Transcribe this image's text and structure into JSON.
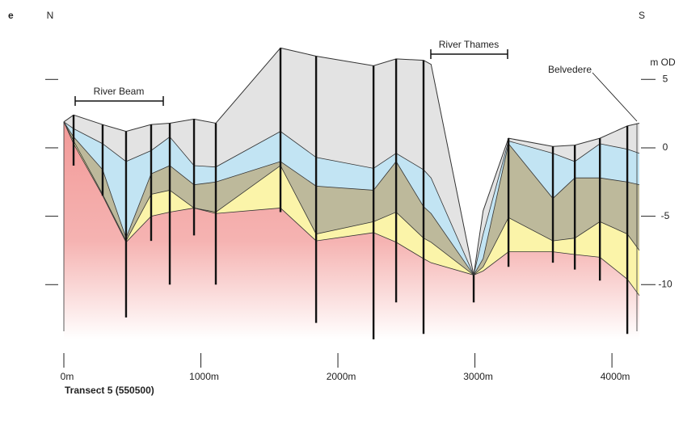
{
  "panel_label": "e",
  "north": "N",
  "south": "S",
  "annotations": {
    "river_beam": "River Beam",
    "river_thames": "River Thames",
    "belvedere": "Belvedere"
  },
  "chart_data": {
    "type": "cross-section",
    "title": "Transect 5 (550500)",
    "y_label": "m OD",
    "xlim": [
      0,
      4200
    ],
    "ylim": [
      -14,
      8
    ],
    "xticks": [
      {
        "value": 0,
        "label": "0m"
      },
      {
        "value": 1000,
        "label": "1000m"
      },
      {
        "value": 2000,
        "label": "2000m"
      },
      {
        "value": 3000,
        "label": "3000m"
      },
      {
        "value": 4000,
        "label": "4000m"
      }
    ],
    "yticks": [
      5,
      0,
      -5,
      -10
    ],
    "x": [
      0,
      71,
      283,
      454,
      637,
      773,
      950,
      1109,
      1581,
      1841,
      2260,
      2425,
      2625,
      2680,
      2991,
      3060,
      3245,
      3569,
      3729,
      3912,
      4112,
      4200
    ],
    "series": [
      {
        "color": "#e3e3e3",
        "values": [
          1.9,
          2.4,
          1.7,
          1.2,
          1.7,
          1.8,
          2.1,
          1.8,
          7.3,
          6.7,
          6.0,
          6.5,
          6.4,
          6.1,
          -9.3,
          -4.6,
          0.7,
          0.1,
          0.2,
          0.7,
          1.6,
          1.8
        ]
      },
      {
        "color": "#c2e4f3",
        "values": [
          1.9,
          1.4,
          0.3,
          -1.0,
          -0.2,
          0.8,
          -1.3,
          -1.4,
          1.2,
          -0.7,
          -1.5,
          -0.4,
          -1.6,
          -2.2,
          -9.3,
          -6.3,
          0.5,
          -0.4,
          -1.0,
          0.3,
          -0.1,
          -0.4
        ]
      },
      {
        "color": "#bdb99b",
        "values": [
          1.9,
          0.8,
          -1.6,
          -6.6,
          -1.9,
          -1.3,
          -2.7,
          -2.5,
          -1.0,
          -2.8,
          -3.1,
          -1.0,
          -4.3,
          -4.8,
          -9.3,
          -8.1,
          0.3,
          -3.7,
          -2.2,
          -2.2,
          -2.5,
          -2.7
        ]
      },
      {
        "color": "#fbf4a9",
        "values": [
          1.9,
          0.5,
          -3.4,
          -6.8,
          -3.4,
          -3.1,
          -4.4,
          -4.7,
          -1.3,
          -6.3,
          -5.4,
          -4.7,
          -6.6,
          -6.9,
          -9.3,
          -8.7,
          -5.1,
          -6.8,
          -6.6,
          -5.4,
          -6.3,
          -7.5
        ]
      },
      {
        "color": "#f29a98",
        "values": [
          1.9,
          0.3,
          -3.5,
          -6.9,
          -5.0,
          -4.7,
          -4.4,
          -4.8,
          -4.4,
          -6.8,
          -6.2,
          -6.9,
          -8.1,
          -8.4,
          -9.3,
          -9.0,
          -7.6,
          -7.6,
          -7.8,
          -8.0,
          -9.6,
          -10.8
        ]
      }
    ],
    "boreholes": {
      "x": [
        71,
        283,
        454,
        637,
        773,
        950,
        1109,
        1581,
        1841,
        2260,
        2425,
        2625,
        2991,
        3245,
        3569,
        3729,
        3912,
        4112
      ],
      "top": [
        2.4,
        1.7,
        1.2,
        1.7,
        1.8,
        2.1,
        1.8,
        7.3,
        6.7,
        6.0,
        6.5,
        6.4,
        -9.3,
        0.7,
        0.1,
        0.2,
        0.7,
        1.6
      ],
      "bottom": [
        -1.3,
        -3.5,
        -12.4,
        -6.8,
        -10.0,
        -6.4,
        -10.0,
        -4.7,
        -12.8,
        -14.0,
        -11.3,
        -13.6,
        -11.3,
        -8.7,
        -8.4,
        -8.9,
        -9.7,
        -13.6
      ]
    }
  }
}
